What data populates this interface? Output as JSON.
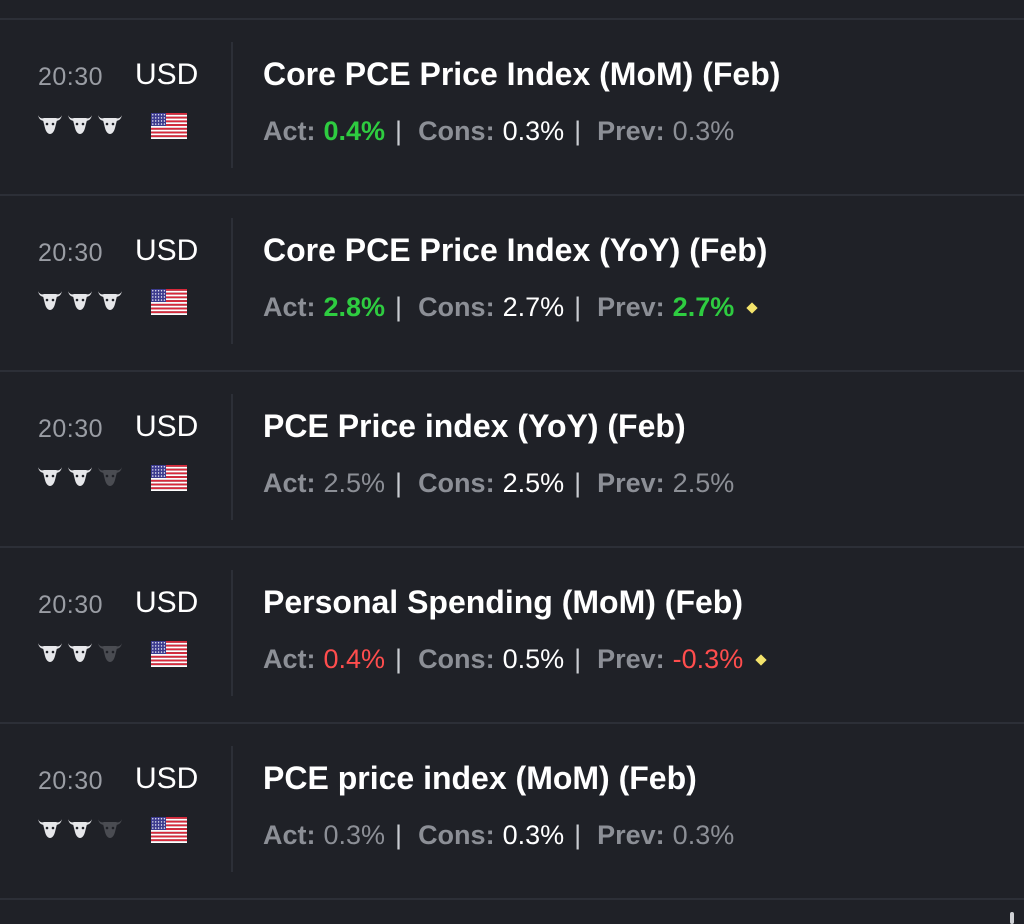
{
  "labels": {
    "act": "Act:",
    "cons": "Cons:",
    "prev": "Prev:",
    "separator": "|"
  },
  "colors": {
    "background": "#1f2127",
    "positive": "#2ecc40",
    "negative": "#ff4d4d",
    "neutral": "#8c8f96",
    "revised_marker": "#f3e36b"
  },
  "icons": {
    "importance": "bull-icon",
    "flag": "us-flag-icon",
    "revision": "diamond-icon"
  },
  "events": [
    {
      "time": "20:30",
      "currency": "USD",
      "importance": 3,
      "title": "Core PCE Price Index (MoM) (Feb)",
      "act": "0.4%",
      "act_color": "green",
      "cons": "0.3%",
      "prev": "0.3%",
      "prev_color": "grey",
      "prev_revised": false
    },
    {
      "time": "20:30",
      "currency": "USD",
      "importance": 3,
      "title": "Core PCE Price Index (YoY) (Feb)",
      "act": "2.8%",
      "act_color": "green",
      "cons": "2.7%",
      "prev": "2.7%",
      "prev_color": "green",
      "prev_revised": true
    },
    {
      "time": "20:30",
      "currency": "USD",
      "importance": 2,
      "title": "PCE Price index (YoY) (Feb)",
      "act": "2.5%",
      "act_color": "grey",
      "cons": "2.5%",
      "prev": "2.5%",
      "prev_color": "grey",
      "prev_revised": false
    },
    {
      "time": "20:30",
      "currency": "USD",
      "importance": 2,
      "title": "Personal Spending (MoM) (Feb)",
      "act": "0.4%",
      "act_color": "red",
      "cons": "0.5%",
      "prev": "-0.3%",
      "prev_color": "red",
      "prev_revised": true
    },
    {
      "time": "20:30",
      "currency": "USD",
      "importance": 2,
      "title": "PCE price index (MoM) (Feb)",
      "act": "0.3%",
      "act_color": "grey",
      "cons": "0.3%",
      "prev": "0.3%",
      "prev_color": "grey",
      "prev_revised": false
    }
  ]
}
